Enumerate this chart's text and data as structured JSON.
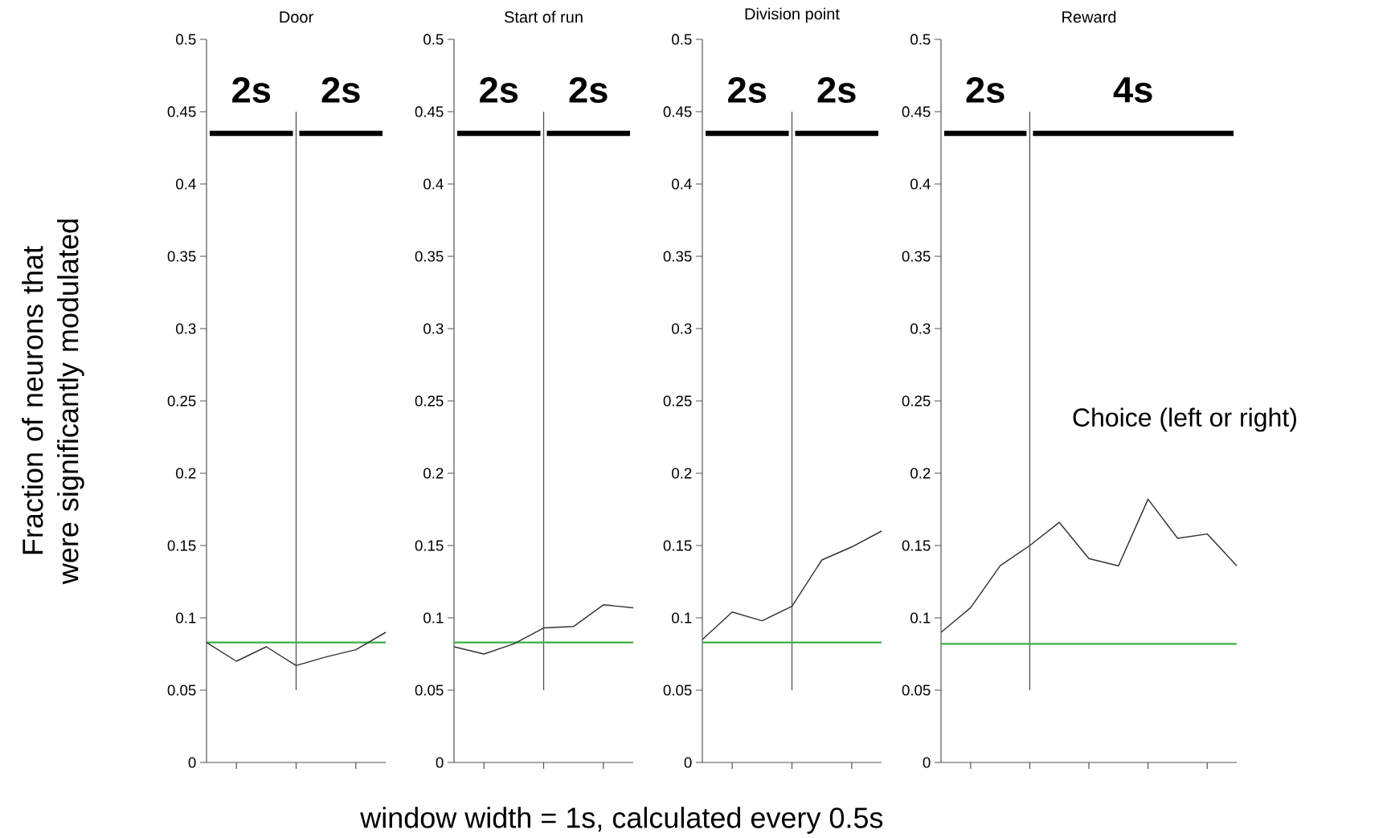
{
  "chart_data": [
    {
      "type": "line",
      "title": "Door",
      "ylabel": "Fraction of neurons that were significantly modulated",
      "xlabel": "window width = 1s, calculated every 0.5s",
      "annotations": [
        "2s",
        "2s"
      ],
      "categories": [
        null,
        null,
        null,
        null,
        null,
        null,
        null
      ],
      "series": [
        {
          "color": "#333333",
          "values": [
            0.083,
            0.07,
            0.08,
            0.067,
            0.073,
            0.078,
            0.09
          ]
        }
      ],
      "ylim": [
        0,
        0.5
      ],
      "yticks": [
        0,
        0.05,
        0.1,
        0.15,
        0.2,
        0.25,
        0.3,
        0.35,
        0.4,
        0.45,
        0.5
      ],
      "tick_labels": "y",
      "ref_lines": [
        {
          "axis": "y",
          "value": 0.083,
          "color": "#3cb043"
        }
      ]
    },
    {
      "type": "line",
      "title": "Start of run",
      "annotations": [
        "2s",
        "2s"
      ],
      "categories": [
        null,
        null,
        null,
        null,
        null,
        null,
        null
      ],
      "series": [
        {
          "color": "#333333",
          "values": [
            0.08,
            0.075,
            0.082,
            0.093,
            0.094,
            0.109,
            0.107
          ]
        }
      ],
      "ylim": [
        0,
        0.5
      ],
      "yticks": [
        0,
        0.05,
        0.1,
        0.15,
        0.2,
        0.25,
        0.3,
        0.35,
        0.4,
        0.45,
        0.5
      ],
      "tick_labels": "y",
      "ref_lines": [
        {
          "axis": "y",
          "value": 0.083,
          "color": "#3cb043"
        }
      ]
    },
    {
      "type": "line",
      "title": "Division point",
      "annotations": [
        "2s",
        "2s"
      ],
      "categories": [
        null,
        null,
        null,
        null,
        null,
        null,
        null
      ],
      "series": [
        {
          "color": "#333333",
          "values": [
            0.085,
            0.104,
            0.098,
            0.108,
            0.14,
            0.149,
            0.16
          ]
        }
      ],
      "ylim": [
        0,
        0.5
      ],
      "yticks": [
        0,
        0.05,
        0.1,
        0.15,
        0.2,
        0.25,
        0.3,
        0.35,
        0.4,
        0.45,
        0.5
      ],
      "tick_labels": "y",
      "ref_lines": [
        {
          "axis": "y",
          "value": 0.083,
          "color": "#3cb043"
        }
      ]
    },
    {
      "type": "line",
      "title": "Reward",
      "annotations": [
        "2s",
        "4s",
        "Choice (left or right)"
      ],
      "categories": [
        null,
        null,
        null,
        null,
        null,
        null,
        null,
        null,
        null,
        null,
        null
      ],
      "series": [
        {
          "color": "#333333",
          "values": [
            0.09,
            0.107,
            0.136,
            0.15,
            0.166,
            0.141,
            0.136,
            0.182,
            0.155,
            0.158,
            0.136
          ]
        }
      ],
      "ylim": [
        0,
        0.5
      ],
      "yticks": [
        0,
        0.05,
        0.1,
        0.15,
        0.2,
        0.25,
        0.3,
        0.35,
        0.4,
        0.45,
        0.5
      ],
      "tick_labels": "y",
      "ref_lines": [
        {
          "axis": "y",
          "value": 0.082,
          "color": "#3cb043"
        }
      ]
    }
  ]
}
